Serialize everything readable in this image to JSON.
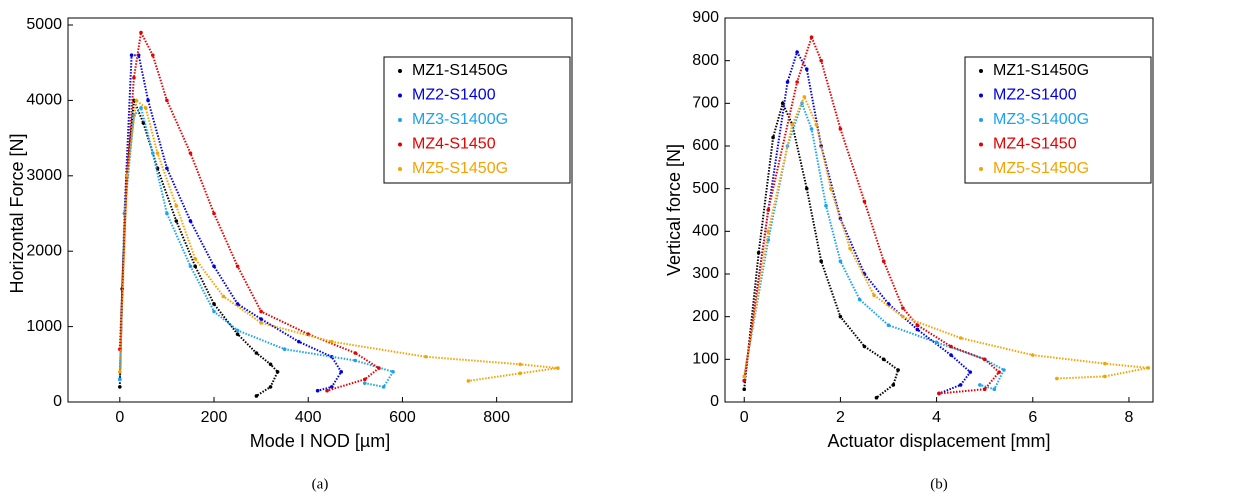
{
  "chart_data": [
    {
      "type": "scatter",
      "caption": "(a)",
      "x_label": "Mode I NOD [µm]",
      "y_label": "Horizontal Force [N]",
      "xlim": [
        -110,
        960
      ],
      "ylim": [
        0,
        5000
      ],
      "xticks": [
        0,
        200,
        400,
        600,
        800
      ],
      "yticks": [
        0,
        1000,
        2000,
        3000,
        4000,
        5000
      ],
      "grid": false,
      "legend": "upper right",
      "series": [
        {
          "name": "MZ1-S1450G",
          "color": "#000000",
          "x": [
            0,
            5,
            15,
            30,
            50,
            80,
            120,
            160,
            200,
            250,
            290,
            320,
            335,
            320,
            290
          ],
          "values": [
            200,
            1500,
            3000,
            4000,
            3700,
            3100,
            2400,
            1800,
            1300,
            900,
            650,
            500,
            400,
            200,
            80
          ]
        },
        {
          "name": "MZ2-S1400",
          "color": "#0000e6",
          "x": [
            0,
            10,
            25,
            40,
            60,
            100,
            150,
            200,
            250,
            300,
            380,
            450,
            470,
            450,
            420
          ],
          "values": [
            300,
            2500,
            4600,
            4600,
            4000,
            3100,
            2400,
            1800,
            1300,
            1100,
            800,
            600,
            400,
            200,
            150
          ]
        },
        {
          "name": "MZ3-S1400G",
          "color": "#1aa3ee",
          "x": [
            0,
            10,
            30,
            45,
            70,
            100,
            150,
            200,
            250,
            350,
            500,
            580,
            560,
            520
          ],
          "values": [
            300,
            2500,
            3800,
            3900,
            3300,
            2500,
            1800,
            1200,
            950,
            700,
            550,
            400,
            200,
            250
          ]
        },
        {
          "name": "MZ4-S1450",
          "color": "#e60000",
          "x": [
            0,
            15,
            30,
            45,
            70,
            100,
            150,
            200,
            250,
            300,
            400,
            500,
            550,
            520,
            440
          ],
          "values": [
            700,
            3000,
            4300,
            4900,
            4600,
            4000,
            3300,
            2500,
            1800,
            1200,
            900,
            650,
            450,
            300,
            150
          ]
        },
        {
          "name": "MZ5-S1450G",
          "color": "#f5a300",
          "x": [
            0,
            15,
            35,
            55,
            80,
            120,
            160,
            220,
            300,
            450,
            650,
            850,
            930,
            850,
            740
          ],
          "values": [
            400,
            3000,
            4000,
            3900,
            3300,
            2600,
            1900,
            1400,
            1050,
            800,
            600,
            500,
            450,
            380,
            280
          ]
        }
      ]
    },
    {
      "type": "scatter",
      "caption": "(b)",
      "x_label": "Actuator displacement [mm]",
      "y_label": "Vertical force [N]",
      "xlim": [
        -0.4,
        8.5
      ],
      "ylim": [
        0,
        900
      ],
      "xticks": [
        0,
        2,
        4,
        6,
        8
      ],
      "yticks": [
        0,
        100,
        200,
        300,
        400,
        500,
        600,
        700,
        800,
        900
      ],
      "grid": false,
      "legend": "upper right",
      "series": [
        {
          "name": "MZ1-S1450G",
          "color": "#000000",
          "x": [
            0,
            0.3,
            0.6,
            0.8,
            1.0,
            1.3,
            1.6,
            2.0,
            2.5,
            2.9,
            3.2,
            3.1,
            2.75
          ],
          "values": [
            30,
            350,
            620,
            700,
            650,
            500,
            330,
            200,
            130,
            100,
            75,
            40,
            10
          ]
        },
        {
          "name": "MZ2-S1400",
          "color": "#0000e6",
          "x": [
            0,
            0.5,
            0.9,
            1.1,
            1.3,
            1.6,
            2.0,
            2.5,
            3.0,
            3.6,
            4.3,
            4.7,
            4.5,
            4.05
          ],
          "values": [
            50,
            450,
            750,
            820,
            780,
            600,
            430,
            300,
            230,
            170,
            110,
            70,
            40,
            20
          ]
        },
        {
          "name": "MZ3-S1400G",
          "color": "#1aa3ee",
          "x": [
            0,
            0.5,
            0.9,
            1.2,
            1.4,
            1.7,
            2.0,
            2.4,
            3.0,
            4.0,
            5.0,
            5.4,
            5.2,
            4.9
          ],
          "values": [
            60,
            380,
            600,
            700,
            640,
            460,
            330,
            240,
            180,
            140,
            100,
            75,
            30,
            40
          ]
        },
        {
          "name": "MZ4-S1450",
          "color": "#e60000",
          "x": [
            0,
            0.5,
            1.1,
            1.4,
            1.6,
            2.0,
            2.5,
            2.9,
            3.3,
            3.6,
            4.3,
            5.0,
            5.3,
            5.0,
            4.05
          ],
          "values": [
            50,
            450,
            750,
            855,
            800,
            640,
            470,
            330,
            220,
            180,
            130,
            100,
            70,
            30,
            20
          ]
        },
        {
          "name": "MZ5-S1450G",
          "color": "#f5a300",
          "x": [
            0,
            0.5,
            1.0,
            1.25,
            1.5,
            1.8,
            2.2,
            2.7,
            3.3,
            4.5,
            6.0,
            7.5,
            8.4,
            7.5,
            6.5
          ],
          "values": [
            60,
            400,
            650,
            715,
            650,
            500,
            360,
            250,
            200,
            150,
            110,
            90,
            80,
            60,
            55
          ]
        }
      ]
    }
  ]
}
